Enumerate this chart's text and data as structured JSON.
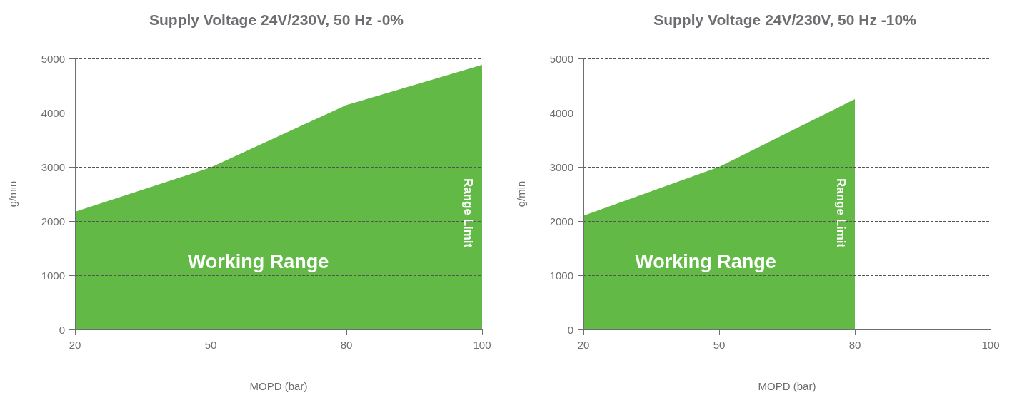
{
  "chart_data": [
    {
      "type": "area",
      "title": "Supply Voltage 24V/230V, 50 Hz -0%",
      "xlabel": "MOPD (bar)",
      "ylabel": "g/min",
      "categories": [
        "20",
        "50",
        "80",
        "100"
      ],
      "values": [
        2170,
        2990,
        4140,
        4880
      ],
      "color": "#62b946",
      "ylim": [
        0,
        5000
      ],
      "yticks": [
        0,
        1000,
        2000,
        3000,
        4000,
        5000
      ],
      "grid": "y",
      "annotations": [
        "Working Range",
        "Range Limit"
      ]
    },
    {
      "type": "area",
      "title": "Supply Voltage 24V/230V, 50 Hz -10%",
      "xlabel": "MOPD (bar)",
      "ylabel": "g/min",
      "categories": [
        "20",
        "50",
        "80",
        "100"
      ],
      "values": [
        2100,
        3000,
        4250,
        null
      ],
      "color": "#62b946",
      "ylim": [
        0,
        5000
      ],
      "yticks": [
        0,
        1000,
        2000,
        3000,
        4000,
        5000
      ],
      "grid": "y",
      "annotations": [
        "Working Range",
        "Range Limit"
      ]
    }
  ]
}
